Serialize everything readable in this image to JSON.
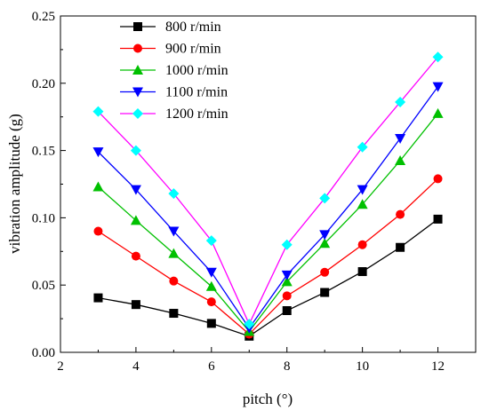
{
  "chart_data": {
    "type": "line",
    "title": "",
    "xlabel": "pitch (°)",
    "ylabel": "vibration amplitude (g)",
    "xlim": [
      2,
      13
    ],
    "ylim": [
      0,
      0.25
    ],
    "x_ticks": [
      "2",
      "4",
      "6",
      "8",
      "10",
      "12"
    ],
    "y_ticks": [
      "0.00",
      "0.05",
      "0.10",
      "0.15",
      "0.20",
      "0.25"
    ],
    "grid": false,
    "legend_position": "top-left",
    "x": [
      3,
      4,
      5,
      6,
      7,
      8,
      9,
      10,
      11,
      12
    ],
    "series": [
      {
        "name": "800 r/min",
        "color": "#000000",
        "marker": "square",
        "values": [
          0.0405,
          0.0355,
          0.029,
          0.0215,
          0.012,
          0.031,
          0.0445,
          0.06,
          0.078,
          0.099
        ]
      },
      {
        "name": "900 r/min",
        "color": "#ff0000",
        "marker": "circle",
        "values": [
          0.09,
          0.0715,
          0.053,
          0.0375,
          0.0135,
          0.042,
          0.0595,
          0.08,
          0.1025,
          0.129
        ]
      },
      {
        "name": "1000 r/min",
        "color": "#00c000",
        "marker": "triangle-up",
        "values": [
          0.123,
          0.098,
          0.0735,
          0.049,
          0.0155,
          0.0525,
          0.081,
          0.11,
          0.1425,
          0.1775
        ]
      },
      {
        "name": "1100 r/min",
        "color": "#0000ff",
        "marker": "triangle-down",
        "values": [
          0.149,
          0.121,
          0.09,
          0.0595,
          0.018,
          0.0575,
          0.0875,
          0.121,
          0.159,
          0.1975
        ]
      },
      {
        "name": "1200 r/min",
        "color": "#ff00ff",
        "marker_color": "#00ffff",
        "marker": "diamond",
        "values": [
          0.179,
          0.15,
          0.118,
          0.083,
          0.021,
          0.08,
          0.1145,
          0.1525,
          0.186,
          0.2195
        ]
      }
    ]
  }
}
